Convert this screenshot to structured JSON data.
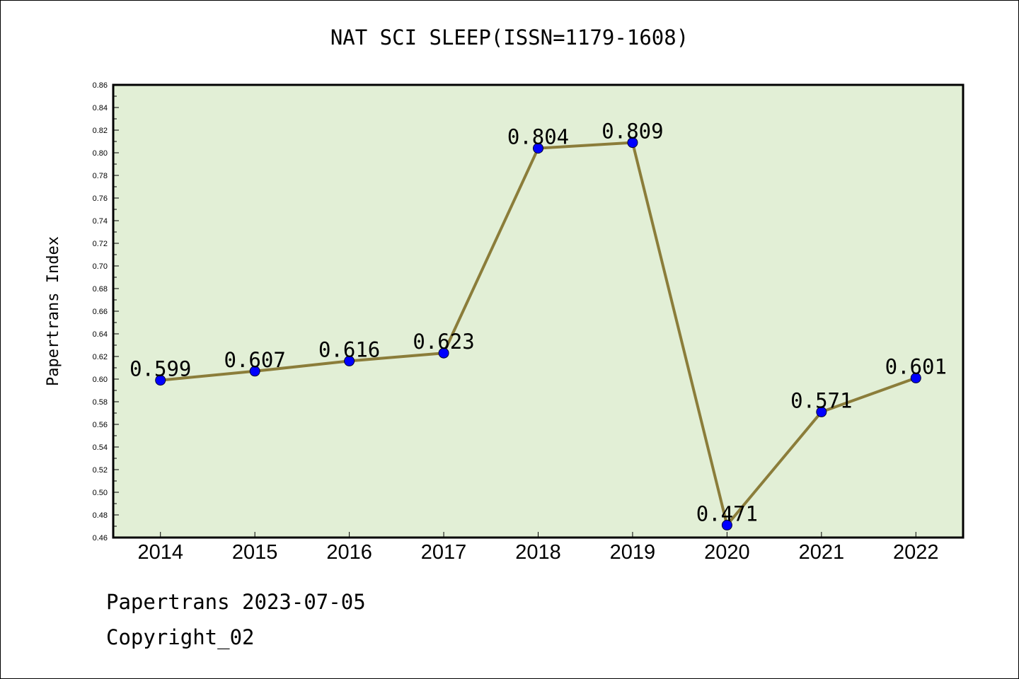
{
  "chart_data": {
    "type": "line",
    "title": "NAT SCI SLEEP(ISSN=1179-1608)",
    "xlabel": "",
    "ylabel": "Papertrans Index",
    "categories": [
      "2014",
      "2015",
      "2016",
      "2017",
      "2018",
      "2019",
      "2020",
      "2021",
      "2022"
    ],
    "series": [
      {
        "values": [
          0.599,
          0.607,
          0.616,
          0.623,
          0.804,
          0.809,
          0.471,
          0.571,
          0.601
        ]
      }
    ],
    "data_labels": [
      "0.599",
      "0.607",
      "0.616",
      "0.623",
      "0.804",
      "0.809",
      "0.471",
      "0.571",
      "0.601"
    ],
    "ylim": [
      0.46,
      0.86
    ],
    "y_ticks": [
      "0.46",
      "0.48",
      "0.50",
      "0.52",
      "0.54",
      "0.56",
      "0.58",
      "0.60",
      "0.62",
      "0.64",
      "0.66",
      "0.68",
      "0.70",
      "0.72",
      "0.74",
      "0.76",
      "0.78",
      "0.80",
      "0.82",
      "0.84",
      "0.86"
    ],
    "grid": false,
    "legend": "none",
    "colors": {
      "plot_bg": "#e2efd6",
      "line": "#8b7d3a",
      "marker": "#0000ff"
    }
  },
  "footer": {
    "line1": "Papertrans 2023-07-05",
    "line2": "Copyright_02"
  }
}
